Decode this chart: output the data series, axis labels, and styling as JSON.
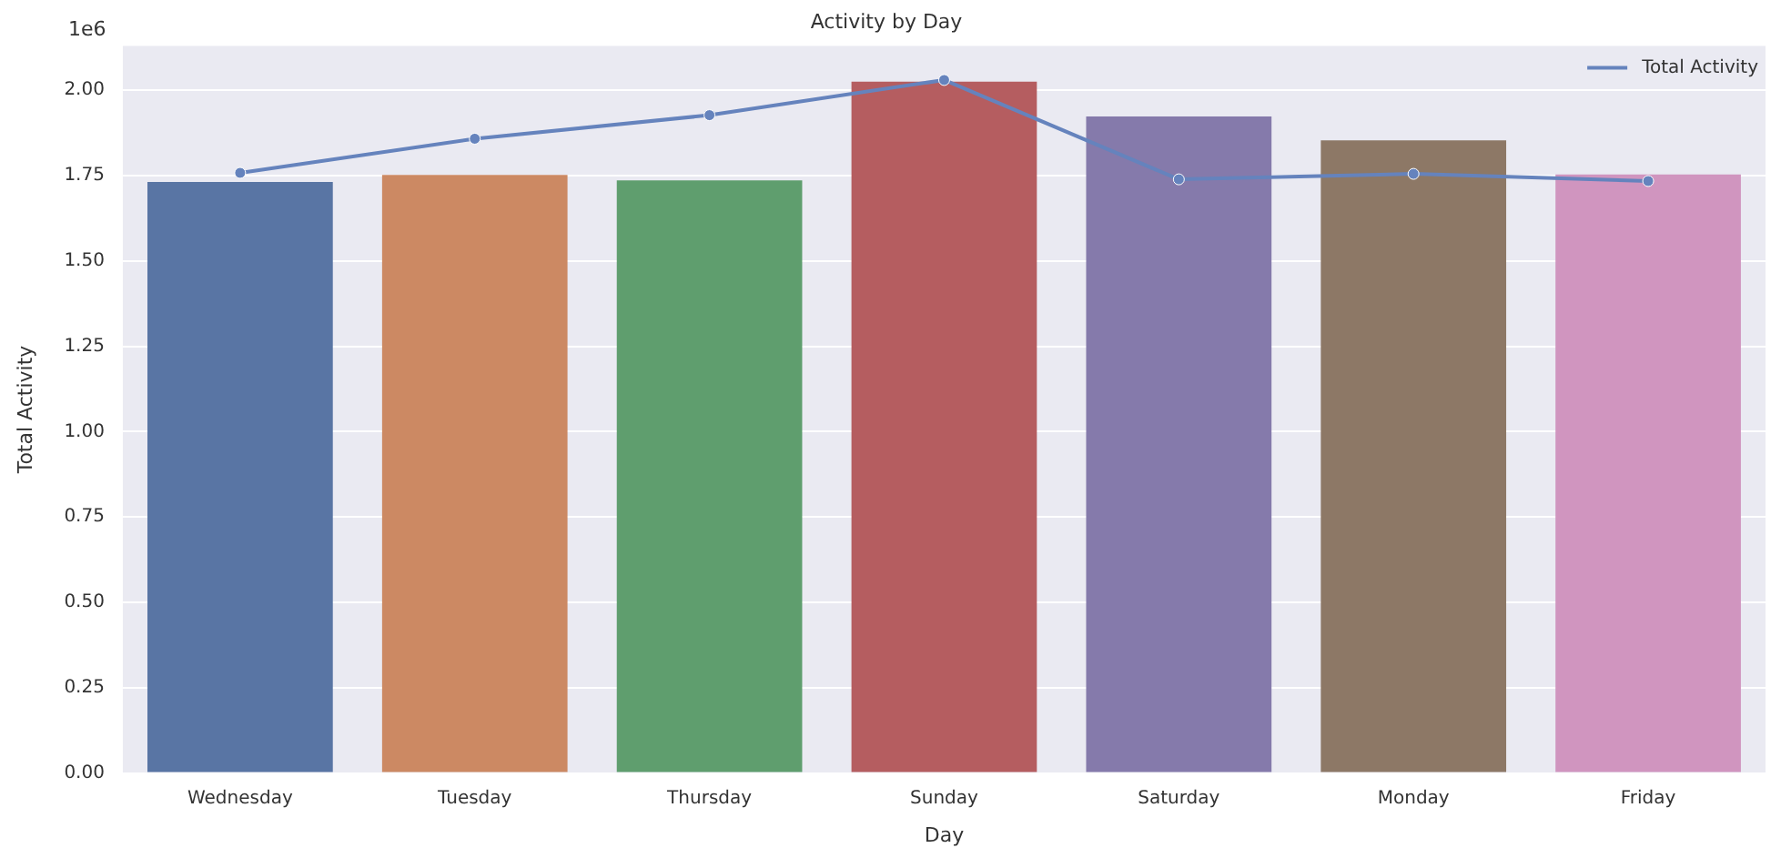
{
  "chart_data": {
    "type": "bar",
    "title": "Activity by Day",
    "xlabel": "Day",
    "ylabel": "Total Activity",
    "categories": [
      "Wednesday",
      "Tuesday",
      "Thursday",
      "Sunday",
      "Saturday",
      "Monday",
      "Friday"
    ],
    "series": [
      {
        "colors": [
          "#5975a4",
          "#cc8963",
          "#5f9e6e",
          "#b55d60",
          "#857aab",
          "#8d7866",
          "#d095bf"
        ],
        "values": [
          1.731,
          1.752,
          1.736,
          2.025,
          1.923,
          1.853,
          1.753
        ]
      },
      {
        "type": "line",
        "name": "Total Activity",
        "color": "#6583bd",
        "values": [
          1.758,
          1.858,
          1.927,
          2.03,
          1.739,
          1.755,
          1.734
        ]
      }
    ],
    "ylim": [
      0,
      2.13
    ],
    "yticks": [
      {
        "value": 0,
        "label": "0.00"
      },
      0.25,
      {
        "value": 0.5,
        "label": "0.50"
      },
      0.75,
      {
        "value": 1,
        "label": "1.00"
      },
      1.25,
      {
        "value": 1.5,
        "label": "1.50"
      },
      1.75,
      {
        "value": 2,
        "label": "2.00"
      }
    ],
    "annotations": [
      "1e6"
    ],
    "grid": "y",
    "legend": "top right",
    "marker": "circle",
    "line_style": "solid"
  }
}
